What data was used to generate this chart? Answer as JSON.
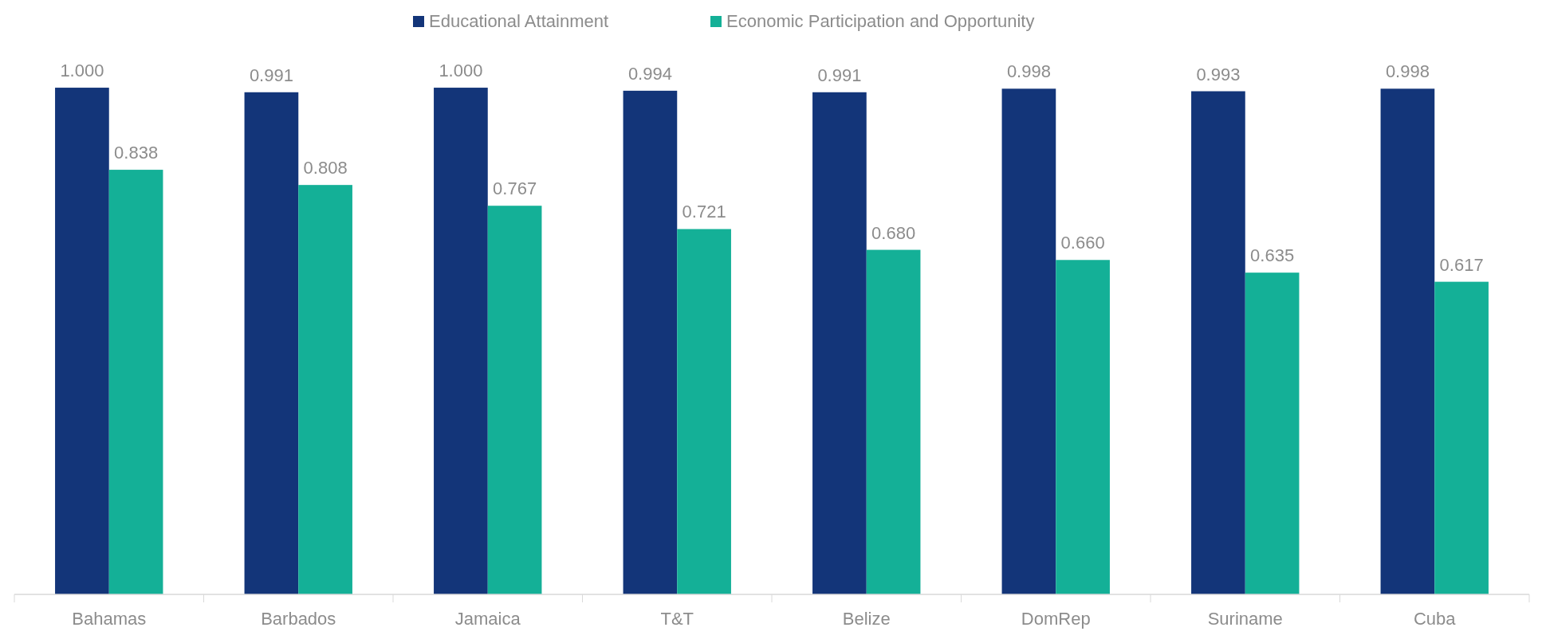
{
  "chart_data": {
    "type": "bar",
    "categories": [
      "Bahamas",
      "Barbados",
      "Jamaica",
      "T&T",
      "Belize",
      "DomRep",
      "Suriname",
      "Cuba"
    ],
    "series": [
      {
        "name": "Educational Attainment",
        "color": "#133579",
        "values": [
          1.0,
          0.991,
          1.0,
          0.994,
          0.991,
          0.998,
          0.993,
          0.998
        ],
        "value_labels": [
          "1.000",
          "0.991",
          "1.000",
          "0.994",
          "0.991",
          "0.998",
          "0.993",
          "0.998"
        ]
      },
      {
        "name": "Economic Participation and Opportunity",
        "color": "#14b097",
        "values": [
          0.838,
          0.808,
          0.767,
          0.721,
          0.68,
          0.66,
          0.635,
          0.617
        ],
        "value_labels": [
          "0.838",
          "0.808",
          "0.767",
          "0.721",
          "0.680",
          "0.660",
          "0.635",
          "0.617"
        ]
      }
    ],
    "legend": "top"
  }
}
